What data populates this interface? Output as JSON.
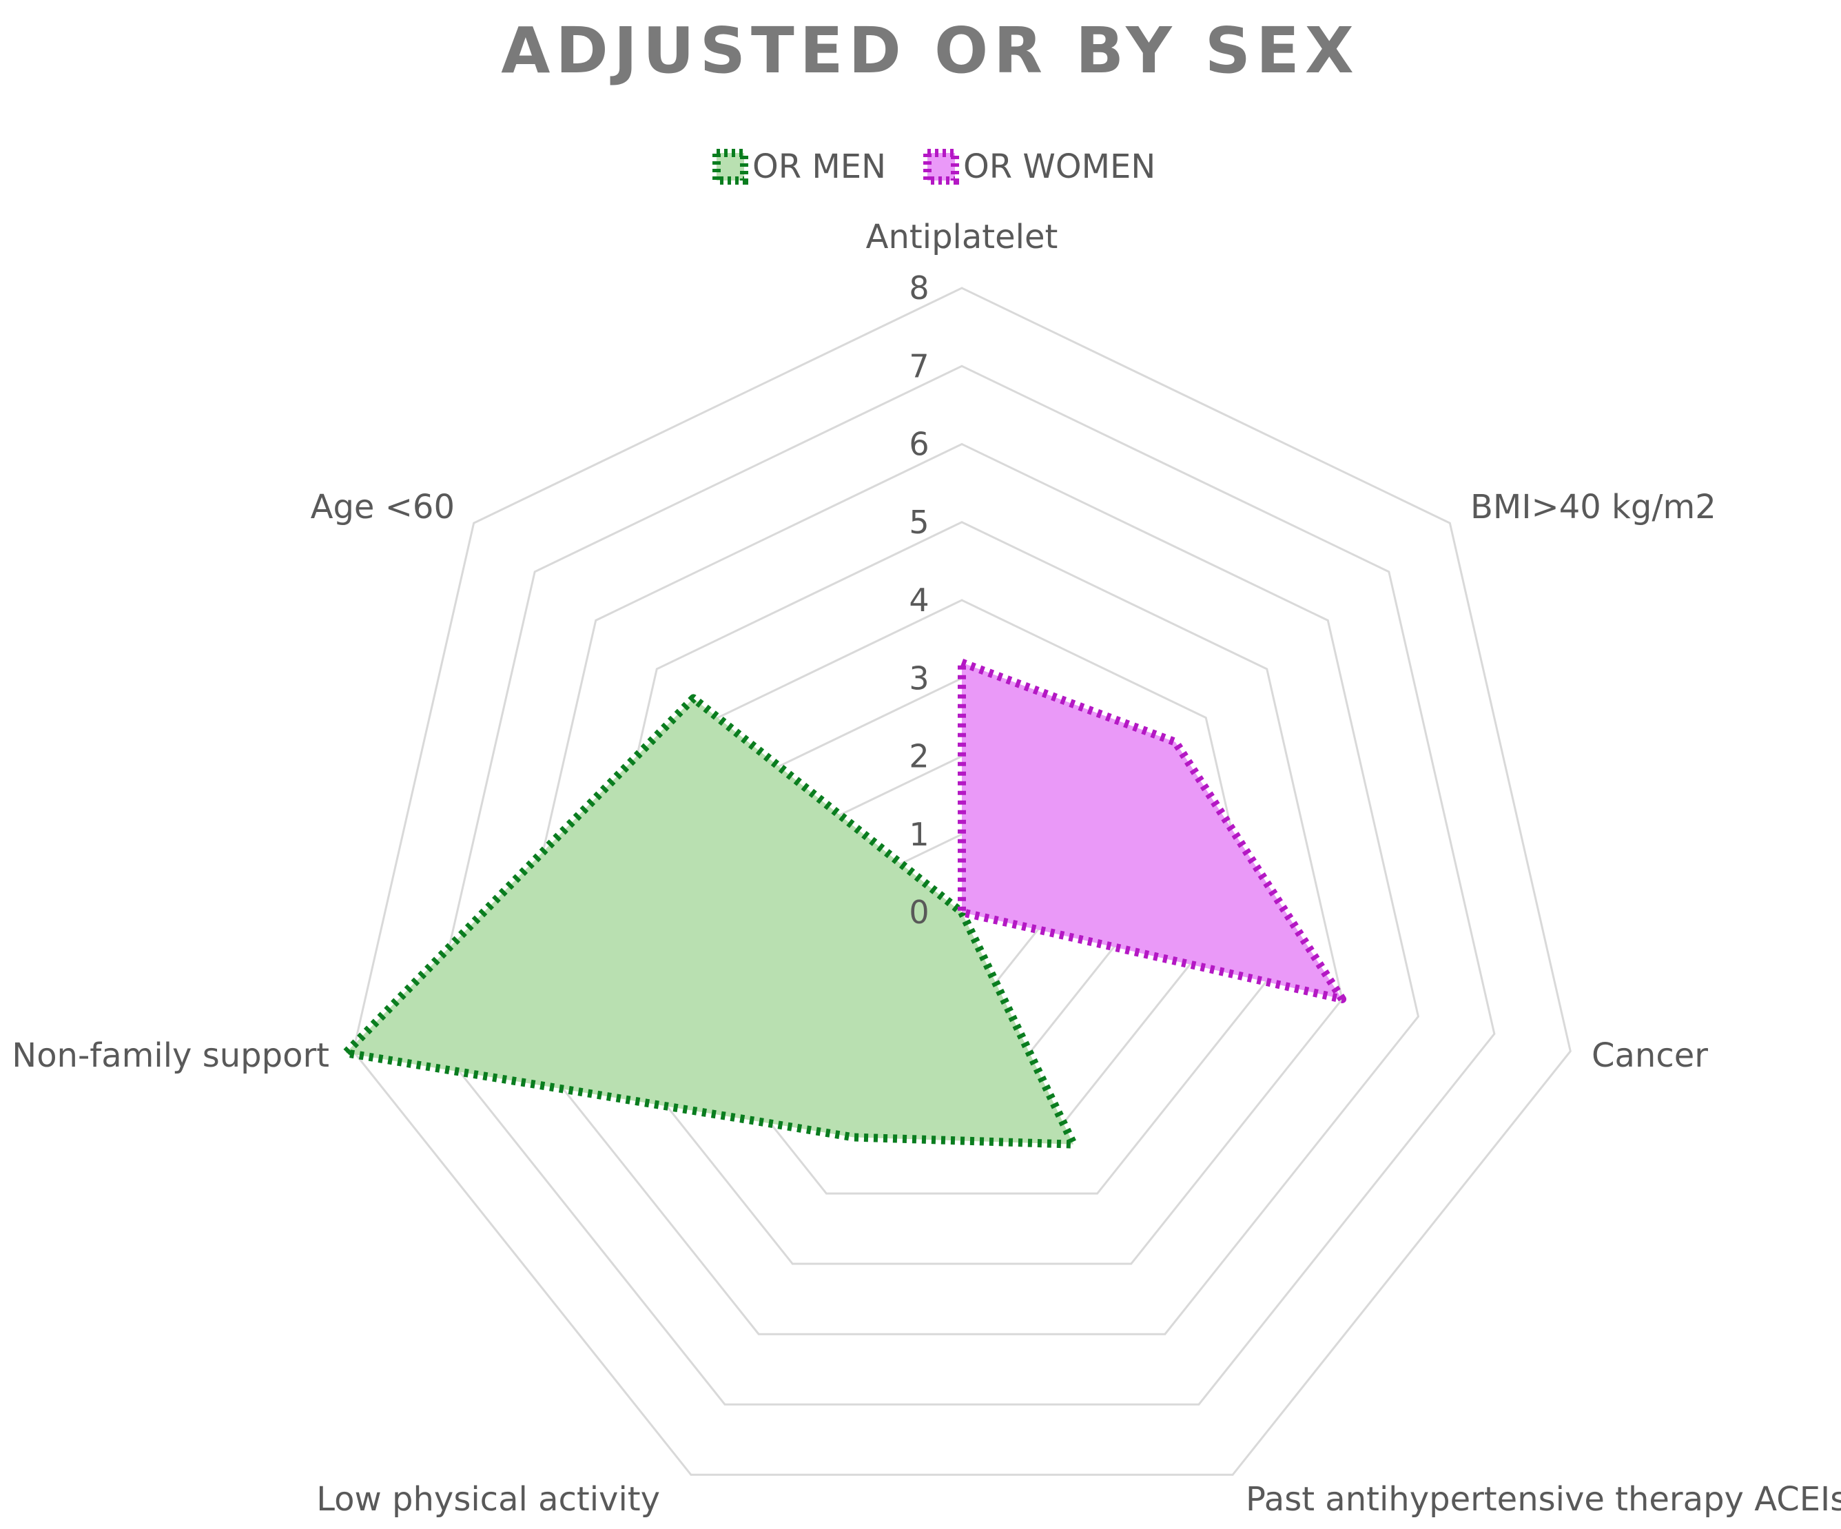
{
  "chart_data": {
    "type": "radar",
    "title": "ADJUSTED OR BY SEX",
    "categories": [
      "Antiplatelet",
      "BMI>40 kg/m2",
      "Cancer",
      "Past antihypertensive therapy ACEIs",
      "Low physical activity",
      "Non-family support",
      "Age <60"
    ],
    "rlim": [
      0,
      8
    ],
    "ticks": [
      "0",
      "1",
      "2",
      "3",
      "4",
      "5",
      "6",
      "7",
      "8"
    ],
    "grid": true,
    "legend_position": "top",
    "series": [
      {
        "name": "OR MEN",
        "values": [
          0,
          0,
          0,
          3.3,
          3.2,
          8.1,
          4.4
        ],
        "line_color": "#0a7d1f",
        "fill_color": "#b9e0b1"
      },
      {
        "name": "OR WOMEN",
        "values": [
          3.2,
          3.5,
          5.0,
          0,
          0,
          0,
          0
        ],
        "line_color": "#b418c4",
        "fill_color": "#ea99f8"
      }
    ]
  }
}
